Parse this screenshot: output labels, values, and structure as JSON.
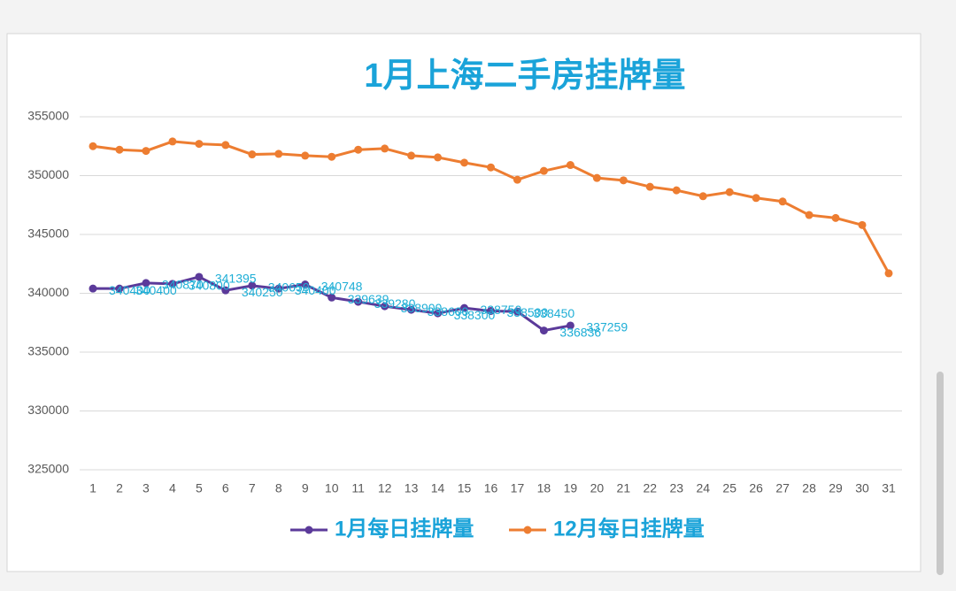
{
  "chart_data": {
    "type": "line",
    "title": "1月上海二手房挂牌量",
    "categories": [
      1,
      2,
      3,
      4,
      5,
      6,
      7,
      8,
      9,
      10,
      11,
      12,
      13,
      14,
      15,
      16,
      17,
      18,
      19,
      20,
      21,
      22,
      23,
      24,
      25,
      26,
      27,
      28,
      29,
      30,
      31
    ],
    "series": [
      {
        "name": "1月每日挂牌量",
        "color": "#5b3a9a",
        "label_color": "#1eaed6",
        "values": [
          340400,
          340400,
          340870,
          340800,
          341395,
          340250,
          340650,
          340400,
          340748,
          339639,
          339280,
          338900,
          338600,
          338300,
          338750,
          338500,
          338450,
          336836,
          337259,
          null,
          null,
          null,
          null,
          null,
          null,
          null,
          null,
          null,
          null,
          null,
          null
        ]
      },
      {
        "name": "12月每日挂牌量",
        "color": "#ed7d31",
        "values": [
          352500,
          352200,
          352100,
          352900,
          352700,
          352600,
          351800,
          351850,
          351700,
          351600,
          352200,
          352300,
          351700,
          351550,
          351100,
          350700,
          349650,
          350400,
          350900,
          349800,
          349600,
          349050,
          348750,
          348250,
          348600,
          348100,
          347800,
          346650,
          346400,
          345800,
          341700
        ]
      }
    ],
    "ylim": [
      325000,
      355000
    ],
    "yticks": [
      325000,
      330000,
      335000,
      340000,
      345000,
      350000,
      355000
    ],
    "grid": true,
    "legend": "bottom",
    "title_color": "#1aa3d9"
  }
}
